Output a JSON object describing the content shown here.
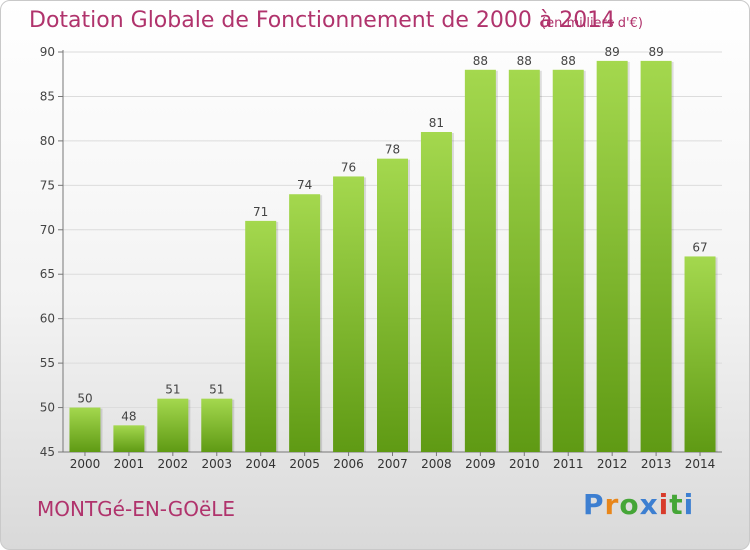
{
  "header": {
    "title": "Dotation Globale de Fonctionnement de 2000 à 2014",
    "unit": "(en milliers d'€)"
  },
  "footer": {
    "commune": "MONTGé-EN-GOëLE",
    "logo": "Proxiti",
    "logo_colors": [
      "#3d7fd1",
      "#e8861a",
      "#45a637",
      "#3d7fd1",
      "#d83b2b",
      "#45a637",
      "#3d7fd1"
    ]
  },
  "chart_data": {
    "type": "bar",
    "title": "Dotation Globale de Fonctionnement de 2000 à 2014",
    "subtitle": "(en milliers d'€)",
    "categories": [
      "2000",
      "2001",
      "2002",
      "2003",
      "2004",
      "2005",
      "2006",
      "2007",
      "2008",
      "2009",
      "2010",
      "2011",
      "2012",
      "2013",
      "2014"
    ],
    "values": [
      50,
      48,
      51,
      51,
      71,
      74,
      76,
      78,
      81,
      88,
      88,
      88,
      89,
      89,
      67
    ],
    "ylim": [
      45,
      90
    ],
    "yticks": [
      45,
      50,
      55,
      60,
      65,
      70,
      75,
      80,
      85,
      90
    ],
    "grid": true,
    "bar_color_top": "#a4d84e",
    "bar_color_bottom": "#5f9a14"
  }
}
